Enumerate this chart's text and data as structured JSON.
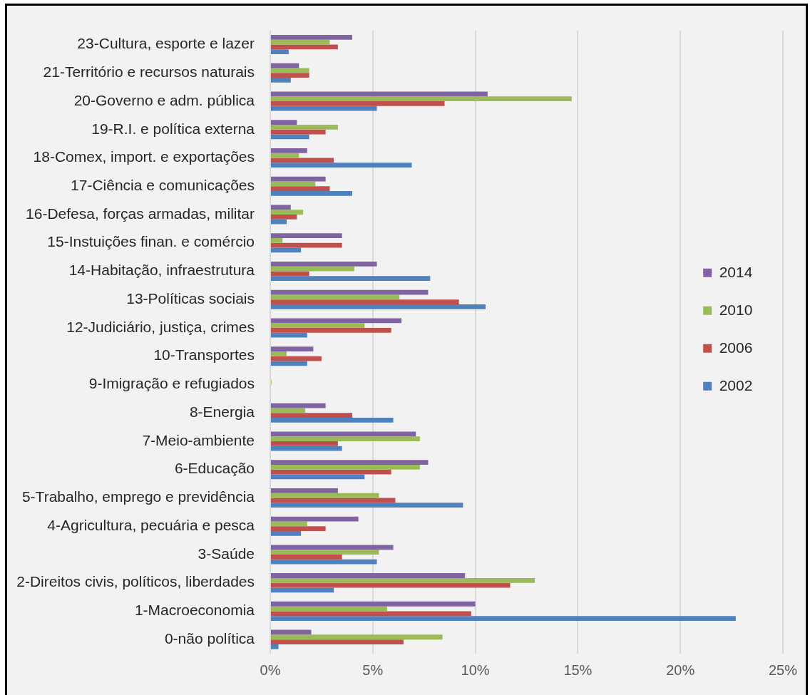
{
  "chart_data": {
    "type": "bar",
    "orientation": "horizontal",
    "categories": [
      "23-Cultura, esporte e lazer",
      "21-Território e recursos naturais",
      "20-Governo e adm. pública",
      "19-R.I. e política externa",
      "18-Comex, import. e exportações",
      "17-Ciência e comunicações",
      "16-Defesa, forças armadas, militar",
      "15-Instuições finan. e comércio",
      "14-Habitação, infraestrutura",
      "13-Políticas sociais",
      "12-Judiciário, justiça, crimes",
      "10-Transportes",
      "9-Imigração e refugiados",
      "8-Energia",
      "7-Meio-ambiente",
      "6-Educação",
      "5-Trabalho, emprego e previdência",
      "4-Agricultura, pecuária e pesca",
      "3-Saúde",
      "2-Direitos civis, políticos, liberdades",
      "1-Macroeconomia",
      "0-não política"
    ],
    "series": [
      {
        "name": "2014",
        "color": "#8064a2",
        "values": [
          4.0,
          1.4,
          10.6,
          1.3,
          1.8,
          2.7,
          1.0,
          3.5,
          5.2,
          7.7,
          6.4,
          2.1,
          0,
          2.7,
          7.1,
          7.7,
          3.3,
          4.3,
          6.0,
          9.5,
          10.0,
          2.0
        ]
      },
      {
        "name": "2010",
        "color": "#9bbb59",
        "values": [
          2.9,
          1.9,
          14.7,
          3.3,
          1.4,
          2.2,
          1.6,
          0.6,
          4.1,
          6.3,
          4.6,
          0.8,
          0.06,
          1.7,
          7.3,
          7.3,
          5.3,
          1.8,
          5.3,
          12.9,
          5.7,
          8.4
        ]
      },
      {
        "name": "2006",
        "color": "#c0504d",
        "values": [
          3.3,
          1.9,
          8.5,
          2.7,
          3.1,
          2.9,
          1.3,
          3.5,
          1.9,
          9.2,
          5.9,
          2.5,
          0,
          4.0,
          3.3,
          5.9,
          6.1,
          2.7,
          3.5,
          11.7,
          9.8,
          6.5
        ]
      },
      {
        "name": "2002",
        "color": "#4f81bd",
        "values": [
          0.9,
          1.0,
          5.2,
          1.9,
          6.9,
          4.0,
          0.8,
          1.5,
          7.8,
          10.5,
          1.8,
          1.8,
          0,
          6.0,
          3.5,
          4.6,
          9.4,
          1.5,
          5.2,
          3.1,
          22.7,
          0.4
        ]
      }
    ],
    "xlim": [
      0,
      25
    ],
    "xticks": [
      {
        "value": 0,
        "label": "0%"
      },
      {
        "value": 5,
        "label": "5%"
      },
      {
        "value": 10,
        "label": "10%"
      },
      {
        "value": 15,
        "label": "15%"
      },
      {
        "value": 20,
        "label": "20%"
      },
      {
        "value": 25,
        "label": "25%"
      }
    ],
    "grid": "x",
    "legend": "right"
  }
}
